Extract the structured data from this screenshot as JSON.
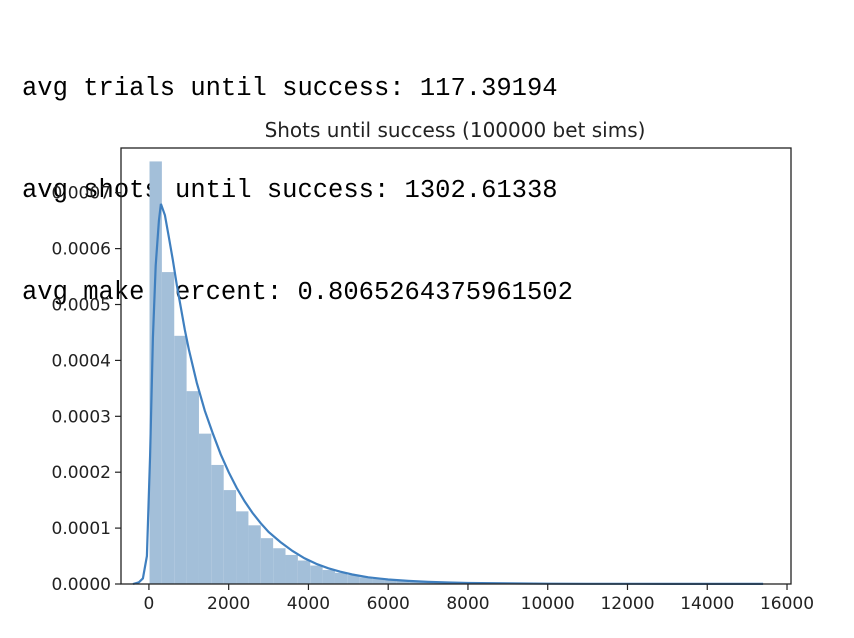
{
  "console": {
    "lines": [
      "avg trials until success: 117.39194",
      "avg shots until success: 1302.61338",
      "avg make percent: 0.8065264375961502"
    ]
  },
  "chart_data": {
    "type": "histogram",
    "title": "Shots until success (100000 bet sims)",
    "xlabel": "",
    "ylabel": "",
    "xlim": [
      -700,
      16100
    ],
    "ylim": [
      0,
      0.00078
    ],
    "xticks": [
      0,
      2000,
      4000,
      6000,
      8000,
      10000,
      12000,
      14000,
      16000
    ],
    "xtick_labels": [
      "0",
      "2000",
      "4000",
      "6000",
      "8000",
      "10000",
      "12000",
      "14000",
      "16000"
    ],
    "yticks": [
      0,
      0.0001,
      0.0002,
      0.0003,
      0.0004,
      0.0005,
      0.0006,
      0.0007
    ],
    "ytick_labels": [
      "0.0000",
      "0.0001",
      "0.0002",
      "0.0003",
      "0.0004",
      "0.0005",
      "0.0006",
      "0.0007"
    ],
    "bin_edges": [
      15,
      325,
      635,
      945,
      1255,
      1565,
      1875,
      2185,
      2495,
      2805,
      3115,
      3425,
      3735,
      4045,
      4355,
      4665,
      4975,
      5285,
      5595,
      5905,
      6215,
      6525,
      6835,
      7145,
      7455,
      7765,
      8075,
      8385,
      8695,
      9005,
      9315,
      9625,
      9935,
      10245,
      10555,
      10865,
      11175,
      11485,
      11795,
      12105,
      12415,
      12725,
      13035,
      13345,
      13655,
      13965,
      14275,
      14585,
      14895,
      15205,
      15355
    ],
    "densities": [
      0.000756,
      0.000558,
      0.000444,
      0.000345,
      0.000269,
      0.000213,
      0.000168,
      0.00013,
      0.000105,
      8.2e-05,
      6.4e-05,
      5.2e-05,
      4.2e-05,
      3.3e-05,
      2.5e-05,
      2e-05,
      1.6e-05,
      1.2e-05,
      9e-06,
      7e-06,
      5.5e-06,
      4.2e-06,
      3.2e-06,
      2.5e-06,
      1.9e-06,
      1.5e-06,
      1.2e-06,
      1e-06,
      8e-07,
      6e-07,
      5e-07,
      4e-07,
      3e-07,
      3e-07,
      2e-07,
      2e-07,
      2e-07,
      1e-07,
      1e-07,
      1e-07,
      1e-07,
      1e-07,
      1e-07,
      1e-07,
      1e-07,
      1e-07,
      1e-07,
      1e-07,
      1e-07,
      1e-07
    ],
    "kde": {
      "x": [
        -400,
        -250,
        -150,
        -50,
        30,
        100,
        170,
        250,
        300,
        400,
        500,
        600,
        700,
        800,
        900,
        1000,
        1200,
        1400,
        1600,
        1800,
        2000,
        2200,
        2400,
        2600,
        2800,
        3000,
        3300,
        3600,
        3900,
        4200,
        4500,
        4800,
        5100,
        5500,
        6000,
        6500,
        7000,
        7500,
        8000,
        9000,
        10000,
        11000,
        12000,
        13000,
        14000,
        15000,
        15400
      ],
      "y": [
        0,
        3e-06,
        1e-05,
        5e-05,
        0.00023,
        0.00044,
        0.00057,
        0.00065,
        0.00068,
        0.00066,
        0.00062,
        0.00058,
        0.000535,
        0.000495,
        0.000455,
        0.00042,
        0.00036,
        0.00031,
        0.00027,
        0.000232,
        0.0002,
        0.000172,
        0.000148,
        0.000127,
        0.000109,
        9.3e-05,
        7.5e-05,
        5.9e-05,
        4.6e-05,
        3.6e-05,
        2.8e-05,
        2.2e-05,
        1.7e-05,
        1.2e-05,
        8e-06,
        5.5e-06,
        3.8e-06,
        2.6e-06,
        1.8e-06,
        1e-06,
        6e-07,
        4e-07,
        3e-07,
        2e-07,
        2e-07,
        1e-07,
        1e-07
      ]
    },
    "bar_color": "#a3bfd9",
    "kde_color": "#3f7fbf",
    "grid": false
  }
}
